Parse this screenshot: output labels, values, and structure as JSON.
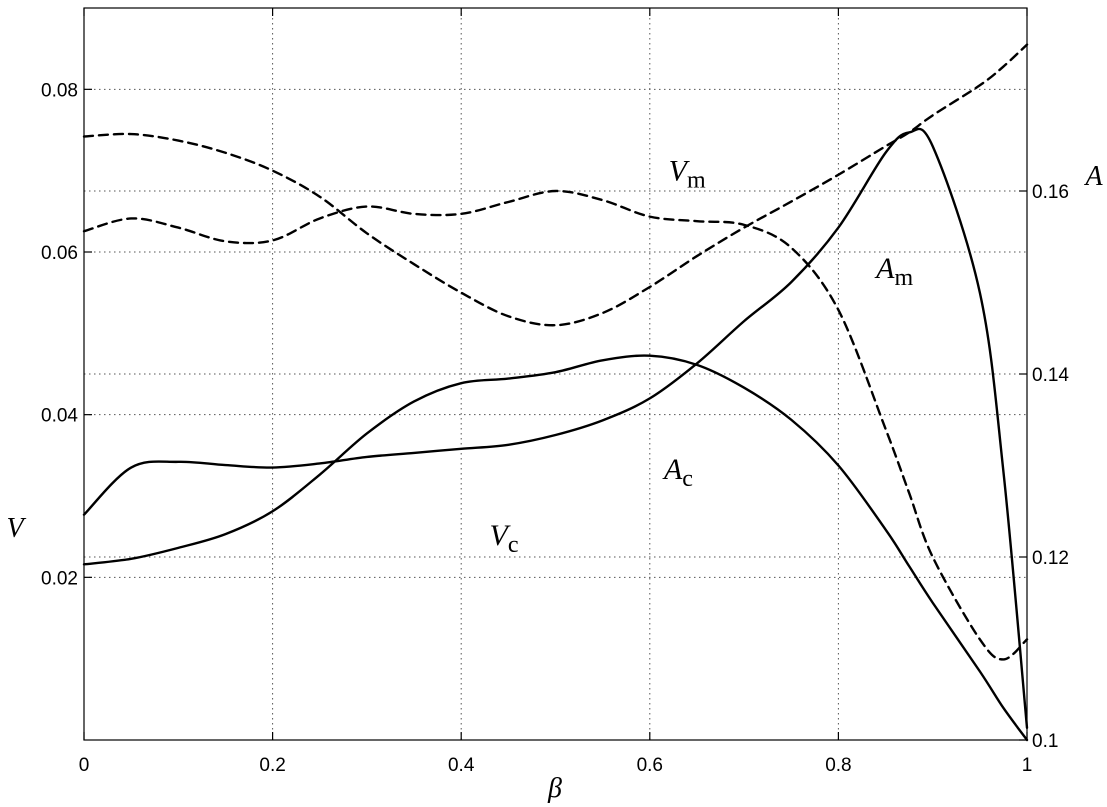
{
  "chart_data": {
    "type": "line",
    "x_axis": {
      "label": "β",
      "range": [
        0,
        1
      ],
      "ticks": [
        0,
        0.2,
        0.4,
        0.6,
        0.8,
        1
      ],
      "tick_labels": [
        "0",
        "0.2",
        "0.4",
        "0.6",
        "0.8",
        "1"
      ]
    },
    "y_axis_left": {
      "label": "V",
      "range": [
        0,
        0.09
      ],
      "ticks": [
        0.02,
        0.04,
        0.06,
        0.08
      ],
      "tick_labels": [
        "0.02",
        "0.04",
        "0.06",
        "0.08"
      ]
    },
    "y_axis_right": {
      "label": "A",
      "range": [
        0.1,
        0.18
      ],
      "ticks": [
        0.1,
        0.12,
        0.14,
        0.16
      ],
      "tick_labels": [
        "0.1",
        "0.12",
        "0.14",
        "0.16"
      ]
    },
    "grid": true,
    "x": [
      0,
      0.05,
      0.1,
      0.15,
      0.2,
      0.25,
      0.3,
      0.35,
      0.4,
      0.45,
      0.5,
      0.55,
      0.6,
      0.65,
      0.7,
      0.75,
      0.8,
      0.85,
      0.875,
      0.9,
      0.95,
      0.975,
      1.0
    ],
    "series": [
      {
        "name": "A_m",
        "label_base": "A",
        "label_sub": "m",
        "axis": "right",
        "style": "dashed",
        "label_at": [
          0.84,
          0.1505
        ],
        "values": [
          0.1556,
          0.157,
          0.156,
          0.1545,
          0.1546,
          0.157,
          0.1583,
          0.1575,
          0.1575,
          0.1588,
          0.16,
          0.159,
          0.1572,
          0.1567,
          0.1563,
          0.1538,
          0.147,
          0.134,
          0.127,
          0.12,
          0.111,
          0.1088,
          0.111
        ]
      },
      {
        "name": "A_c",
        "label_base": "A",
        "label_sub": "c",
        "axis": "right",
        "style": "solid",
        "label_at": [
          0.615,
          0.1285
        ],
        "values": [
          0.1192,
          0.1198,
          0.121,
          0.1225,
          0.125,
          0.129,
          0.1335,
          0.137,
          0.139,
          0.1395,
          0.1402,
          0.1415,
          0.142,
          0.141,
          0.1385,
          0.135,
          0.13,
          0.123,
          0.119,
          0.115,
          0.1075,
          0.1035,
          0.1
        ]
      },
      {
        "name": "V_m",
        "label_base": "V",
        "label_sub": "m",
        "axis": "left",
        "style": "dashed",
        "label_at": [
          0.62,
          0.0688
        ],
        "values": [
          0.0742,
          0.0745,
          0.0737,
          0.0722,
          0.07,
          0.0668,
          0.0623,
          0.0585,
          0.055,
          0.0521,
          0.051,
          0.0525,
          0.0557,
          0.0595,
          0.063,
          0.0662,
          0.0695,
          0.073,
          0.0747,
          0.0768,
          0.0805,
          0.0828,
          0.0855
        ]
      },
      {
        "name": "V_c",
        "label_base": "V",
        "label_sub": "c",
        "axis": "left",
        "style": "solid",
        "label_at": [
          0.43,
          0.024
        ],
        "values": [
          0.0277,
          0.0335,
          0.0342,
          0.0338,
          0.0335,
          0.034,
          0.0348,
          0.0353,
          0.0358,
          0.0363,
          0.0375,
          0.0393,
          0.042,
          0.0463,
          0.0515,
          0.0563,
          0.063,
          0.0722,
          0.0747,
          0.073,
          0.055,
          0.033,
          0.0015
        ]
      }
    ]
  }
}
